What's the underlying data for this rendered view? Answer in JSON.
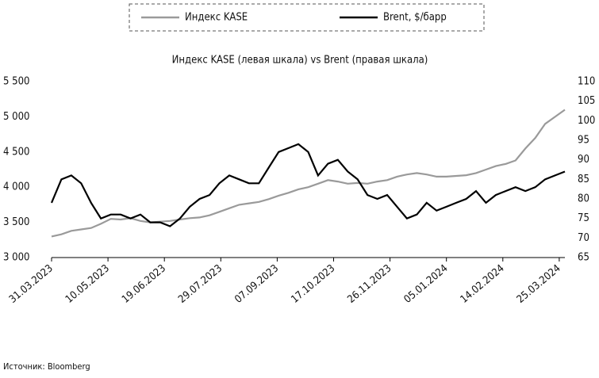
{
  "chart_data": {
    "type": "line",
    "title": "Индекс KASE (левая шкала) vs Brent (правая шкала)",
    "source": "Источник: Bloomberg",
    "legend": "top",
    "x": [
      "31.03.2023",
      "07.04.2023",
      "14.04.2023",
      "21.04.2023",
      "28.04.2023",
      "05.05.2023",
      "12.05.2023",
      "19.05.2023",
      "26.05.2023",
      "02.06.2023",
      "09.06.2023",
      "16.06.2023",
      "23.06.2023",
      "30.06.2023",
      "07.07.2023",
      "14.07.2023",
      "21.07.2023",
      "28.07.2023",
      "04.08.2023",
      "11.08.2023",
      "18.08.2023",
      "25.08.2023",
      "01.09.2023",
      "08.09.2023",
      "15.09.2023",
      "22.09.2023",
      "29.09.2023",
      "06.10.2023",
      "13.10.2023",
      "20.10.2023",
      "27.10.2023",
      "03.11.2023",
      "10.11.2023",
      "17.11.2023",
      "24.11.2023",
      "01.12.2023",
      "08.12.2023",
      "15.12.2023",
      "22.12.2023",
      "29.12.2023",
      "05.01.2024",
      "12.01.2024",
      "19.01.2024",
      "26.01.2024",
      "02.02.2024",
      "09.02.2024",
      "16.02.2024",
      "23.02.2024",
      "01.03.2024",
      "08.03.2024",
      "15.03.2024",
      "22.03.2024",
      "29.03.2024"
    ],
    "series": [
      {
        "name": "Индекс KASE",
        "color": "#9a9a9a",
        "axis": "y",
        "values": [
          3300,
          3330,
          3380,
          3400,
          3420,
          3480,
          3550,
          3540,
          3560,
          3520,
          3500,
          3510,
          3520,
          3540,
          3560,
          3570,
          3600,
          3650,
          3700,
          3750,
          3770,
          3790,
          3830,
          3880,
          3920,
          3970,
          4000,
          4050,
          4100,
          4080,
          4050,
          4060,
          4050,
          4080,
          4100,
          4150,
          4180,
          4200,
          4180,
          4150,
          4150,
          4160,
          4170,
          4200,
          4250,
          4300,
          4330,
          4380,
          4550,
          4700,
          4900,
          5000,
          5100
        ]
      },
      {
        "name": "Brent, $/барр",
        "color": "#000000",
        "axis": "y2",
        "values": [
          79,
          85,
          86,
          84,
          79,
          75,
          76,
          76,
          75,
          76,
          74,
          74,
          73,
          75,
          78,
          80,
          81,
          84,
          86,
          85,
          84,
          84,
          88,
          92,
          93,
          94,
          92,
          86,
          89,
          90,
          87,
          85,
          81,
          80,
          81,
          78,
          75,
          76,
          79,
          77,
          78,
          79,
          80,
          82,
          79,
          81,
          82,
          83,
          82,
          83,
          85,
          86,
          87
        ]
      }
    ],
    "xticks": [
      "31.03.2023",
      "10.05.2023",
      "19.06.2023",
      "29.07.2023",
      "07.09.2023",
      "17.10.2023",
      "26.11.2023",
      "05.01.2024",
      "14.02.2024",
      "25.03.2024"
    ],
    "xlim": [
      "31.03.2023",
      "29.03.2024"
    ],
    "ylim": [
      3000,
      5500
    ],
    "yticks": [
      {
        "value": 3000,
        "label": "3 000"
      },
      {
        "value": 3500,
        "label": "3 500"
      },
      {
        "value": 4000,
        "label": "4 000"
      },
      {
        "value": 4500,
        "label": "4 500"
      },
      {
        "value": 5000,
        "label": "5 000"
      },
      {
        "value": 5500,
        "label": "5 500"
      }
    ],
    "y2lim": [
      65,
      110
    ],
    "y2ticks": [
      65,
      70,
      75,
      80,
      85,
      90,
      95,
      100,
      105,
      110
    ]
  }
}
